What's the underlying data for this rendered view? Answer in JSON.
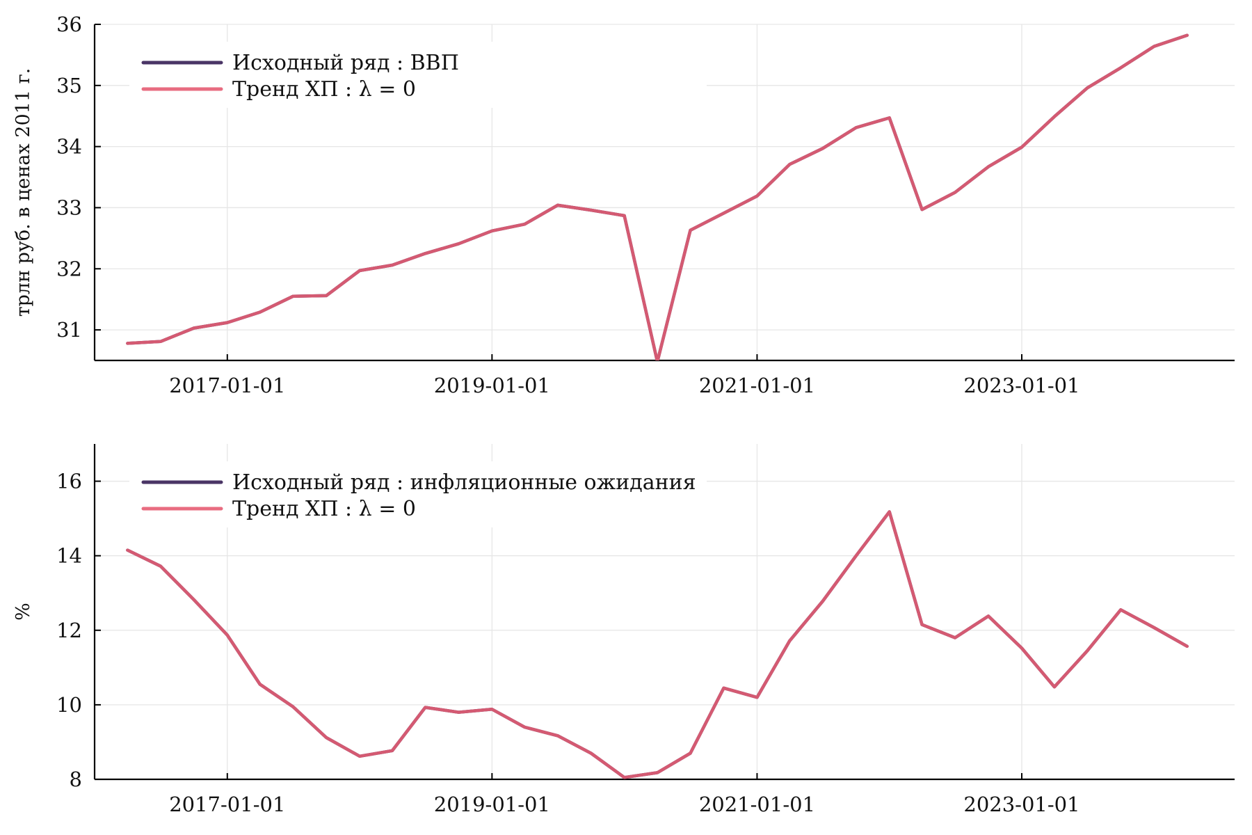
{
  "colors": {
    "original": "#4a3566",
    "trend": "#d45a72",
    "legend_trend": "#e86c80"
  },
  "chart_data": [
    {
      "type": "line",
      "ylabel": "трлн руб. в ценах 2011 г.",
      "ylim": [
        30.5,
        36
      ],
      "yticks": [
        31,
        32,
        33,
        34,
        35,
        36
      ],
      "xlim": [
        "2016-01-01",
        "2024-08-10"
      ],
      "xticks": [
        "2017-01-01",
        "2019-01-01",
        "2021-01-01",
        "2023-01-01"
      ],
      "grid": true,
      "legend_position": "top-left",
      "x": [
        "2016-04-01",
        "2016-07-01",
        "2016-10-01",
        "2017-01-01",
        "2017-04-01",
        "2017-07-01",
        "2017-10-01",
        "2018-01-01",
        "2018-04-01",
        "2018-07-01",
        "2018-10-01",
        "2019-01-01",
        "2019-04-01",
        "2019-07-01",
        "2019-10-01",
        "2020-01-01",
        "2020-04-01",
        "2020-07-01",
        "2020-10-01",
        "2021-01-01",
        "2021-04-01",
        "2021-07-01",
        "2021-10-01",
        "2022-01-01",
        "2022-04-01",
        "2022-07-01",
        "2022-10-01",
        "2023-01-01",
        "2023-04-01",
        "2023-07-01",
        "2023-10-01",
        "2024-01-01",
        "2024-04-01"
      ],
      "series": [
        {
          "name": "Исходный ряд :  ВВП",
          "role": "original",
          "values": [
            30.78,
            30.81,
            31.03,
            31.12,
            31.29,
            31.55,
            31.56,
            31.97,
            32.06,
            32.25,
            32.41,
            32.62,
            32.73,
            33.04,
            32.96,
            32.87,
            30.48,
            32.63,
            32.91,
            33.19,
            33.71,
            33.97,
            34.31,
            34.47,
            32.97,
            33.25,
            33.67,
            33.99,
            34.49,
            34.96,
            35.29,
            35.64,
            35.82
          ]
        },
        {
          "name": "Тренд ХП : λ = 0",
          "role": "trend",
          "values": [
            30.78,
            30.81,
            31.03,
            31.12,
            31.29,
            31.55,
            31.56,
            31.97,
            32.06,
            32.25,
            32.41,
            32.62,
            32.73,
            33.04,
            32.96,
            32.87,
            30.48,
            32.63,
            32.91,
            33.19,
            33.71,
            33.97,
            34.31,
            34.47,
            32.97,
            33.25,
            33.67,
            33.99,
            34.49,
            34.96,
            35.29,
            35.64,
            35.82
          ]
        }
      ]
    },
    {
      "type": "line",
      "ylabel": "%",
      "ylim": [
        8,
        17
      ],
      "yticks": [
        8,
        10,
        12,
        14,
        16
      ],
      "xlim": [
        "2016-01-01",
        "2024-08-10"
      ],
      "xticks": [
        "2017-01-01",
        "2019-01-01",
        "2021-01-01",
        "2023-01-01"
      ],
      "grid": true,
      "legend_position": "top-left",
      "x": [
        "2016-04-01",
        "2016-07-01",
        "2016-10-01",
        "2017-01-01",
        "2017-04-01",
        "2017-07-01",
        "2017-10-01",
        "2018-01-01",
        "2018-04-01",
        "2018-07-01",
        "2018-10-01",
        "2019-01-01",
        "2019-04-01",
        "2019-07-01",
        "2019-10-01",
        "2020-01-01",
        "2020-04-01",
        "2020-07-01",
        "2020-10-01",
        "2021-01-01",
        "2021-04-01",
        "2021-07-01",
        "2021-10-01",
        "2022-01-01",
        "2022-04-01",
        "2022-07-01",
        "2022-10-01",
        "2023-01-01",
        "2023-04-01",
        "2023-07-01",
        "2023-10-01",
        "2024-01-01",
        "2024-04-01"
      ],
      "series": [
        {
          "name": "Исходный ряд : инфляционные ожидания",
          "role": "original",
          "values": [
            14.15,
            13.72,
            12.82,
            11.87,
            10.55,
            9.95,
            9.12,
            8.62,
            8.77,
            9.93,
            9.8,
            9.88,
            9.4,
            9.17,
            8.7,
            8.05,
            8.18,
            8.7,
            10.45,
            10.2,
            11.72,
            12.78,
            14.0,
            15.18,
            12.15,
            11.8,
            12.38,
            11.52,
            10.48,
            11.45,
            12.55,
            12.07,
            11.57
          ]
        },
        {
          "name": "Тренд ХП : λ = 0",
          "role": "trend",
          "values": [
            14.15,
            13.72,
            12.82,
            11.87,
            10.55,
            9.95,
            9.12,
            8.62,
            8.77,
            9.93,
            9.8,
            9.88,
            9.4,
            9.17,
            8.7,
            8.05,
            8.18,
            8.7,
            10.45,
            10.2,
            11.72,
            12.78,
            14.0,
            15.18,
            12.15,
            11.8,
            12.38,
            11.52,
            10.48,
            11.45,
            12.55,
            12.07,
            11.57
          ]
        }
      ]
    }
  ]
}
